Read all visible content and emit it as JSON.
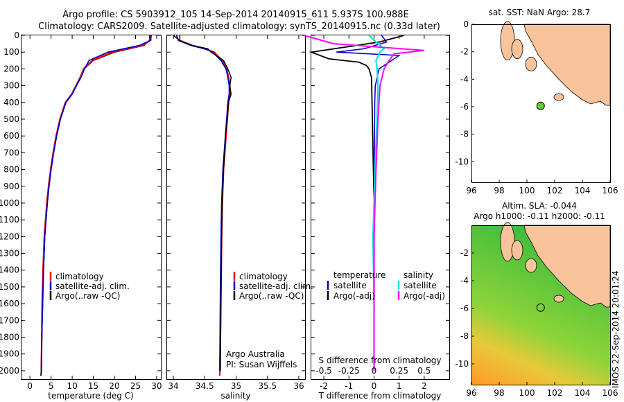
{
  "header": {
    "line1": "Argo profile: CS 5903912_105 14-Sep-2014 20140915_611 5.937S 100.988E",
    "line2": "Climatology: CARS2009. Satellite-adjusted climatology: synTS_20140915.nc (0.33d later)"
  },
  "colors": {
    "climatology": "#ff0000",
    "satellite": "#0000cc",
    "argo": "#000000",
    "salinity_sat": "#00e5e5",
    "salinity_argo": "#ff00ff",
    "land": "#f9c49b",
    "float_marker": "#66cc33"
  },
  "chart_data": [
    {
      "type": "line",
      "xlabel": "temperature (deg C)",
      "ylim": [
        0,
        2050
      ],
      "xlim": [
        -2,
        31
      ],
      "xticks": [
        0,
        5,
        10,
        15,
        20,
        25,
        30
      ],
      "yticks": [
        0,
        100,
        200,
        300,
        400,
        500,
        600,
        700,
        800,
        900,
        1000,
        1100,
        1200,
        1300,
        1400,
        1500,
        1600,
        1700,
        1800,
        1900,
        2000
      ],
      "legend": [
        "climatology",
        "satellite-adj. clim.",
        "Argo(..raw -QC)"
      ],
      "legend_position": "bottom-center",
      "series": [
        {
          "name": "climatology",
          "x": [
            28.4,
            28.3,
            27.0,
            20.0,
            15.0,
            12.8,
            12.0,
            11.0,
            10.0,
            8.5,
            7.2,
            6.3,
            5.6,
            5.0,
            4.5,
            4.1,
            3.8,
            3.5,
            3.2,
            3.0,
            2.8,
            2.7,
            2.6
          ],
          "y": [
            0,
            30,
            60,
            100,
            150,
            200,
            250,
            300,
            350,
            400,
            500,
            600,
            700,
            800,
            900,
            1000,
            1100,
            1200,
            1400,
            1600,
            1800,
            2000,
            2030
          ]
        },
        {
          "name": "satellite-adj. clim.",
          "x": [
            28.6,
            28.4,
            26.8,
            19.5,
            14.8,
            12.7,
            11.9,
            10.9,
            9.9,
            8.4,
            7.1,
            6.2,
            5.5,
            4.9,
            4.4,
            4.0,
            3.7,
            3.4,
            3.1,
            2.9,
            2.8,
            2.7
          ],
          "y": [
            0,
            30,
            60,
            100,
            150,
            200,
            250,
            300,
            350,
            400,
            500,
            600,
            700,
            800,
            900,
            1000,
            1100,
            1200,
            1400,
            1600,
            1800,
            2000
          ]
        },
        {
          "name": "Argo(..raw -QC)",
          "x": [
            28.7,
            28.6,
            26.0,
            18.5,
            14.0,
            12.9,
            12.1,
            11.0,
            10.0,
            8.5,
            7.2,
            6.3,
            5.6,
            5.0,
            4.5,
            4.1,
            3.8,
            3.5,
            3.2,
            3.0,
            2.8,
            2.7
          ],
          "y": [
            0,
            30,
            60,
            100,
            150,
            200,
            250,
            300,
            350,
            400,
            500,
            600,
            700,
            800,
            900,
            1000,
            1100,
            1200,
            1400,
            1600,
            1800,
            2000
          ]
        }
      ]
    },
    {
      "type": "line",
      "xlabel": "salinity",
      "ylim": [
        0,
        2050
      ],
      "xlim": [
        33.9,
        36.1
      ],
      "xticks": [
        34,
        34.5,
        35,
        35.5,
        36
      ],
      "legend": [
        "climatology",
        "satellite-adj. clim.",
        "Argo(..raw -QC)"
      ],
      "legend_position": "bottom-right",
      "annotations": [
        "Argo Australia",
        "PI: Susan Wijffels"
      ],
      "series": [
        {
          "name": "climatology",
          "x": [
            34.1,
            34.1,
            34.3,
            34.5,
            34.65,
            34.78,
            34.85,
            34.88,
            34.9,
            34.9,
            34.88,
            34.86,
            34.84,
            34.82,
            34.8,
            34.79,
            34.78,
            34.77,
            34.76,
            34.75,
            34.74
          ],
          "y": [
            0,
            30,
            60,
            80,
            100,
            150,
            200,
            250,
            300,
            350,
            400,
            500,
            600,
            700,
            800,
            900,
            1000,
            1200,
            1500,
            1800,
            2030
          ]
        },
        {
          "name": "satellite-adj. clim.",
          "x": [
            34.05,
            34.08,
            34.28,
            34.5,
            34.63,
            34.76,
            34.84,
            34.87,
            34.89,
            34.89,
            34.87,
            34.85,
            34.83,
            34.81,
            34.79,
            34.78,
            34.77,
            34.76,
            34.75,
            34.74
          ],
          "y": [
            0,
            30,
            60,
            80,
            100,
            150,
            200,
            250,
            300,
            350,
            400,
            500,
            600,
            700,
            800,
            900,
            1000,
            1200,
            1500,
            2000
          ]
        },
        {
          "name": "Argo(..raw -QC)",
          "x": [
            34.0,
            34.1,
            34.3,
            34.55,
            34.6,
            34.8,
            34.87,
            34.92,
            34.9,
            34.92,
            34.88,
            34.86,
            34.83,
            34.82,
            34.8,
            34.79,
            34.78,
            34.77,
            34.76,
            34.75
          ],
          "y": [
            0,
            30,
            60,
            80,
            100,
            150,
            200,
            250,
            300,
            350,
            400,
            500,
            600,
            700,
            800,
            900,
            1000,
            1200,
            1500,
            2000
          ]
        }
      ]
    },
    {
      "type": "line",
      "xlabel": "T difference from climatology",
      "top_axis_label": "S difference from climatology",
      "ylim": [
        0,
        2050
      ],
      "xlim": [
        -2.5,
        3.0
      ],
      "xticks_T": [
        -2,
        -1,
        0,
        1,
        2
      ],
      "xticks_S": [
        "-0.5",
        "-0.25",
        "0",
        "0.25",
        "0.5"
      ],
      "legend_left_title": "temperature",
      "legend_right_title": "salinity",
      "legend": [
        "satellite",
        "Argo(-adj)",
        "satellite",
        "Argo(-adj)"
      ],
      "series": [
        {
          "name": "temperature satellite",
          "x": [
            0.3,
            0.5,
            -0.4,
            -1.5,
            1.0,
            0.2,
            0.05,
            0.03,
            0.02,
            0.02,
            0.01,
            0.01,
            0.0
          ],
          "y": [
            0,
            40,
            80,
            100,
            120,
            200,
            300,
            400,
            600,
            800,
            1000,
            1500,
            2000
          ]
        },
        {
          "name": "temperature Argo(-adj)",
          "x": [
            1.2,
            0.2,
            -2.5,
            -1.8,
            -0.6,
            -0.3,
            -0.2,
            -0.1,
            -0.08,
            -0.05,
            0.0,
            0.0,
            0.0
          ],
          "y": [
            0,
            40,
            100,
            140,
            160,
            180,
            200,
            250,
            400,
            600,
            1000,
            1500,
            2000
          ]
        },
        {
          "name": "salinity satellite",
          "x": [
            -0.05,
            0.02,
            0.1,
            0.06,
            0.02,
            0.03,
            0.04,
            0.03,
            0.01,
            -0.01,
            0.0,
            0.0
          ],
          "y": [
            0,
            40,
            80,
            100,
            150,
            200,
            300,
            500,
            800,
            1200,
            1600,
            2000
          ]
        },
        {
          "name": "salinity Argo(-adj)",
          "x": [
            -0.7,
            -0.4,
            0.5,
            0.2,
            0.15,
            0.1,
            0.06,
            0.04,
            0.02,
            0.0,
            0.0
          ],
          "y": [
            0,
            50,
            90,
            110,
            150,
            200,
            300,
            500,
            800,
            1200,
            2000
          ]
        }
      ]
    },
    {
      "type": "map",
      "title": "sat. SST: NaN Argo: 28.7",
      "xlim": [
        96,
        106
      ],
      "ylim": [
        -11.5,
        0
      ],
      "xticks": [
        96,
        98,
        100,
        102,
        104,
        106
      ],
      "yticks": [
        0,
        -2,
        -4,
        -6,
        -8,
        -10
      ],
      "float_position": {
        "lon": 100.988,
        "lat": -5.937
      }
    },
    {
      "type": "heatmap",
      "title_line1": "Altim. SLA: -0.044",
      "title_line2": "Argo h1000: -0.11 h2000: -0.11",
      "xlim": [
        96,
        106
      ],
      "ylim": [
        -11.5,
        0
      ],
      "xticks": [
        96,
        98,
        100,
        102,
        104,
        106
      ],
      "yticks": [
        -2,
        -4,
        -6,
        -8,
        -10
      ],
      "float_position": {
        "lon": 100.988,
        "lat": -5.937
      }
    }
  ],
  "side_label": "IMOS 22-Sep-2014 20:01:24"
}
